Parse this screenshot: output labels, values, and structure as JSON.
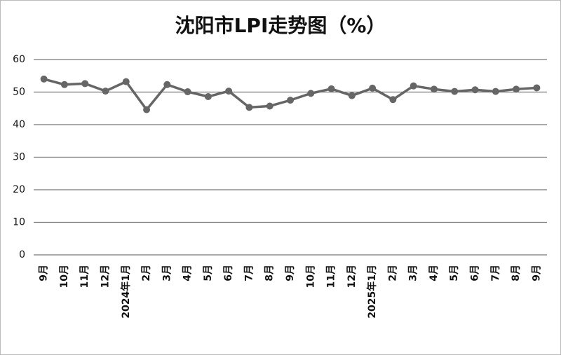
{
  "chart_data": {
    "type": "line",
    "title": "沈阳市LPI走势图（%）",
    "categories": [
      "9月",
      "10月",
      "11月",
      "12月",
      "2024年1月",
      "2月",
      "3月",
      "4月",
      "5月",
      "6月",
      "7月",
      "8月",
      "9月",
      "10月",
      "11月",
      "12月",
      "2025年1月",
      "2月",
      "3月",
      "4月",
      "5月",
      "6月",
      "7月",
      "8月",
      "9月"
    ],
    "series": [
      {
        "name": "沈阳市LPI",
        "color": "#666666",
        "values": [
          54.0,
          52.3,
          52.6,
          50.3,
          53.2,
          44.6,
          52.3,
          50.1,
          48.6,
          50.3,
          45.3,
          45.7,
          47.5,
          49.6,
          51.0,
          48.9,
          51.2,
          47.7,
          51.9,
          50.9,
          50.2,
          50.7,
          50.2,
          50.9,
          51.3
        ]
      }
    ],
    "ylim": [
      0,
      60
    ],
    "yticks": [
      0,
      10,
      20,
      30,
      40,
      50,
      60
    ],
    "grid": true
  }
}
